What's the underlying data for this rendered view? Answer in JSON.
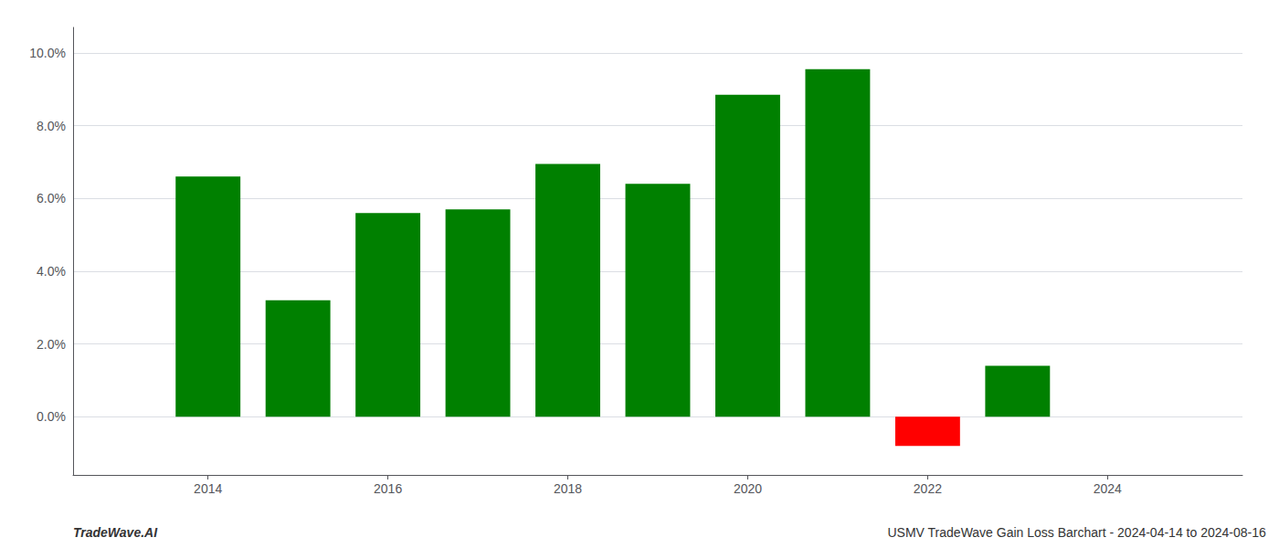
{
  "chart_data": {
    "type": "bar",
    "x": [
      2014,
      2015,
      2016,
      2017,
      2018,
      2019,
      2020,
      2021,
      2022,
      2023
    ],
    "values": [
      0.066,
      0.032,
      0.056,
      0.057,
      0.0695,
      0.064,
      0.0885,
      0.0955,
      -0.008,
      0.014
    ],
    "colors": [
      "#008000",
      "#008000",
      "#008000",
      "#008000",
      "#008000",
      "#008000",
      "#008000",
      "#008000",
      "#ff0000",
      "#008000"
    ],
    "xlim": [
      2012.5,
      2025.5
    ],
    "xticks": [
      2014,
      2016,
      2018,
      2020,
      2022,
      2024
    ],
    "ylim": [
      -0.016,
      0.107
    ],
    "yticks": [
      {
        "value": 0.0,
        "label": "0.0%"
      },
      {
        "value": 0.02,
        "label": "2.0%"
      },
      {
        "value": 0.04,
        "label": "4.0%"
      },
      {
        "value": 0.06,
        "label": "6.0%"
      },
      {
        "value": 0.08,
        "label": "8.0%"
      },
      {
        "value": 0.1,
        "label": "10.0%"
      }
    ],
    "grid": true,
    "annotations": [
      "TradeWave.AI",
      "USMV TradeWave Gain Loss Barchart - 2024-04-14 to 2024-08-16"
    ]
  }
}
